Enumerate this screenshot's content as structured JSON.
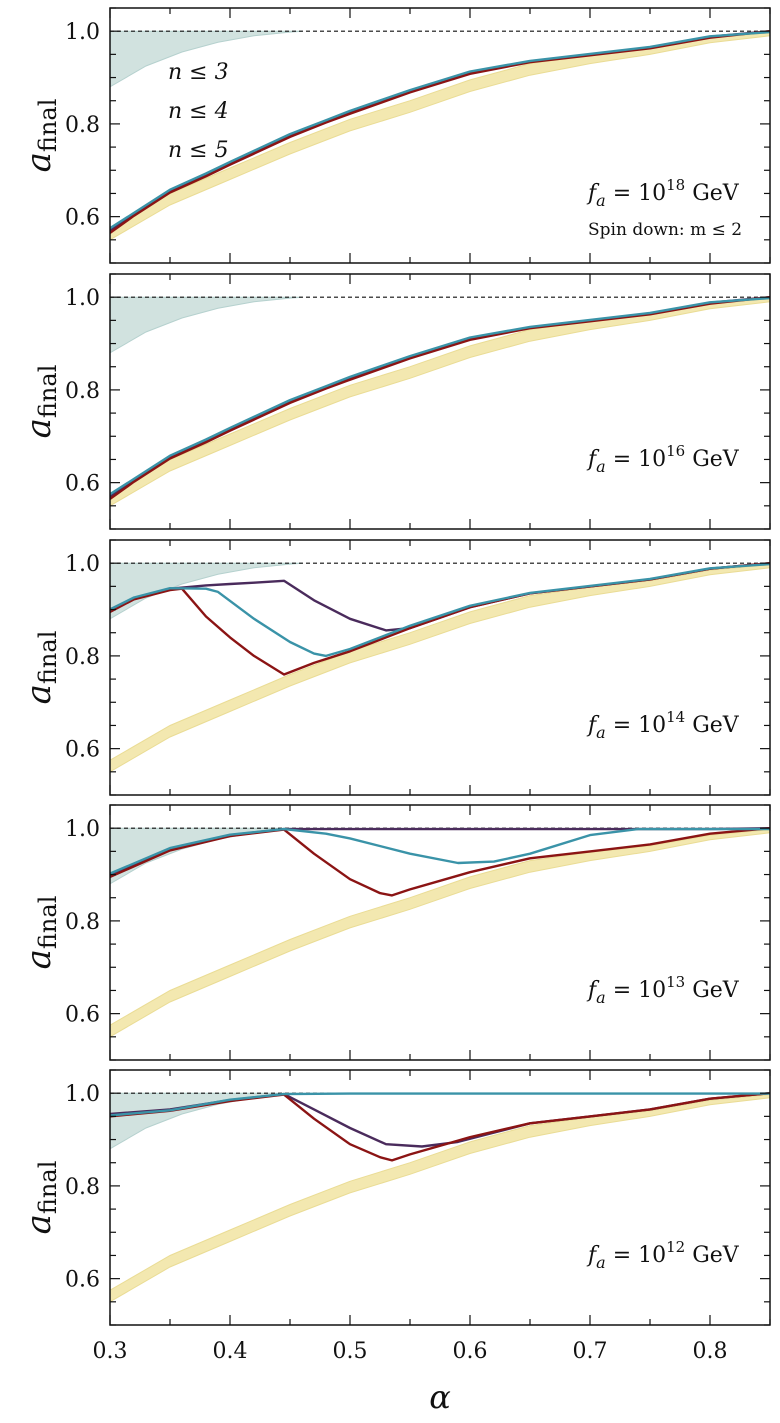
{
  "chart_data": {
    "type": "line",
    "x_range": [
      0.3,
      0.85
    ],
    "y_range": [
      0.5,
      1.05
    ],
    "x_ticks": [
      "0.3",
      "0.4",
      "0.5",
      "0.6",
      "0.7",
      "0.8"
    ],
    "y_ticks": [
      "0.6",
      "0.8",
      "1.0"
    ],
    "xlabel": "α",
    "ylabel_main": "a",
    "ylabel_sub": "final",
    "legend": [
      {
        "name": "n ≤ 3",
        "color": "#4a2b5c"
      },
      {
        "name": "n ≤ 4",
        "color": "#8b1414"
      },
      {
        "name": "n ≤ 5",
        "color": "#3a93a8"
      }
    ],
    "colors": {
      "n3": "#4a2b5c",
      "n4": "#8b1414",
      "n5": "#3a93a8",
      "band": "#f2e6a8",
      "shade": "#c9ddda"
    },
    "reference_line": 1.0,
    "band": {
      "x": [
        0.3,
        0.35,
        0.4,
        0.45,
        0.5,
        0.55,
        0.6,
        0.65,
        0.7,
        0.75,
        0.8,
        0.85
      ],
      "lower": [
        0.55,
        0.625,
        0.68,
        0.735,
        0.785,
        0.825,
        0.87,
        0.905,
        0.93,
        0.95,
        0.975,
        0.99
      ],
      "upper": [
        0.575,
        0.65,
        0.705,
        0.76,
        0.81,
        0.85,
        0.895,
        0.93,
        0.948,
        0.962,
        0.985,
        0.997
      ]
    },
    "shaded_region": {
      "x": [
        0.3,
        0.33,
        0.36,
        0.39,
        0.42,
        0.45,
        0.46
      ],
      "lower": [
        0.88,
        0.925,
        0.955,
        0.976,
        0.99,
        0.998,
        1.0
      ],
      "upper": 1.0
    },
    "panels": [
      {
        "label_prefix": "f",
        "label_sub": "a",
        "label_eq": " = 10",
        "label_exp": "18",
        "label_unit": " GeV",
        "extra_note": "Spin down: m ≤ 2",
        "series": [
          {
            "name": "n ≤ 3",
            "x": [
              0.3,
              0.32,
              0.35,
              0.38,
              0.4,
              0.45,
              0.48,
              0.5,
              0.55,
              0.6,
              0.65,
              0.7,
              0.75,
              0.8,
              0.85
            ],
            "y": [
              0.57,
              0.605,
              0.655,
              0.69,
              0.715,
              0.775,
              0.805,
              0.825,
              0.87,
              0.91,
              0.935,
              0.95,
              0.965,
              0.988,
              1.0
            ]
          },
          {
            "name": "n ≤ 4",
            "x": [
              0.3,
              0.32,
              0.35,
              0.38,
              0.4,
              0.45,
              0.48,
              0.5,
              0.55,
              0.6,
              0.65,
              0.7,
              0.75,
              0.8,
              0.85
            ],
            "y": [
              0.565,
              0.602,
              0.652,
              0.687,
              0.712,
              0.772,
              0.803,
              0.822,
              0.868,
              0.908,
              0.933,
              0.948,
              0.963,
              0.986,
              1.0
            ]
          },
          {
            "name": "n ≤ 5",
            "x": [
              0.3,
              0.32,
              0.35,
              0.38,
              0.4,
              0.45,
              0.48,
              0.5,
              0.55,
              0.6,
              0.65,
              0.7,
              0.75,
              0.8,
              0.85
            ],
            "y": [
              0.575,
              0.608,
              0.658,
              0.693,
              0.718,
              0.778,
              0.808,
              0.828,
              0.873,
              0.913,
              0.936,
              0.951,
              0.966,
              0.989,
              0.998
            ]
          }
        ]
      },
      {
        "label_prefix": "f",
        "label_sub": "a",
        "label_eq": " = 10",
        "label_exp": "16",
        "label_unit": " GeV",
        "extra_note": "",
        "series": [
          {
            "name": "n ≤ 3",
            "x": [
              0.3,
              0.32,
              0.35,
              0.38,
              0.4,
              0.45,
              0.48,
              0.5,
              0.55,
              0.6,
              0.65,
              0.7,
              0.75,
              0.8,
              0.85
            ],
            "y": [
              0.57,
              0.605,
              0.655,
              0.69,
              0.715,
              0.775,
              0.805,
              0.825,
              0.87,
              0.91,
              0.935,
              0.95,
              0.965,
              0.988,
              1.0
            ]
          },
          {
            "name": "n ≤ 4",
            "x": [
              0.3,
              0.32,
              0.35,
              0.38,
              0.4,
              0.45,
              0.48,
              0.5,
              0.55,
              0.6,
              0.65,
              0.7,
              0.75,
              0.8,
              0.85
            ],
            "y": [
              0.565,
              0.602,
              0.652,
              0.687,
              0.712,
              0.772,
              0.803,
              0.822,
              0.868,
              0.908,
              0.933,
              0.948,
              0.963,
              0.986,
              1.0
            ]
          },
          {
            "name": "n ≤ 5",
            "x": [
              0.3,
              0.32,
              0.35,
              0.38,
              0.4,
              0.45,
              0.48,
              0.5,
              0.55,
              0.6,
              0.65,
              0.7,
              0.75,
              0.8,
              0.85
            ],
            "y": [
              0.575,
              0.608,
              0.658,
              0.693,
              0.718,
              0.778,
              0.808,
              0.828,
              0.873,
              0.913,
              0.936,
              0.951,
              0.966,
              0.989,
              0.998
            ]
          }
        ]
      },
      {
        "label_prefix": "f",
        "label_sub": "a",
        "label_eq": " = 10",
        "label_exp": "14",
        "label_unit": " GeV",
        "extra_note": "",
        "series": [
          {
            "name": "n ≤ 3",
            "x": [
              0.3,
              0.32,
              0.35,
              0.38,
              0.4,
              0.42,
              0.445,
              0.47,
              0.5,
              0.53,
              0.55,
              0.6,
              0.65,
              0.7,
              0.75,
              0.8,
              0.85
            ],
            "y": [
              0.9,
              0.925,
              0.945,
              0.952,
              0.955,
              0.958,
              0.962,
              0.92,
              0.88,
              0.855,
              0.86,
              0.905,
              0.935,
              0.95,
              0.965,
              0.988,
              1.0
            ]
          },
          {
            "name": "n ≤ 4",
            "x": [
              0.3,
              0.32,
              0.35,
              0.36,
              0.38,
              0.4,
              0.42,
              0.445,
              0.47,
              0.5,
              0.55,
              0.6,
              0.65,
              0.7,
              0.75,
              0.8,
              0.85
            ],
            "y": [
              0.895,
              0.922,
              0.942,
              0.945,
              0.885,
              0.84,
              0.8,
              0.76,
              0.785,
              0.81,
              0.86,
              0.905,
              0.935,
              0.95,
              0.965,
              0.988,
              1.0
            ]
          },
          {
            "name": "n ≤ 5",
            "x": [
              0.3,
              0.32,
              0.35,
              0.38,
              0.39,
              0.42,
              0.45,
              0.47,
              0.48,
              0.5,
              0.55,
              0.6,
              0.65,
              0.7,
              0.75,
              0.8,
              0.85
            ],
            "y": [
              0.9,
              0.926,
              0.946,
              0.945,
              0.938,
              0.88,
              0.83,
              0.805,
              0.8,
              0.815,
              0.865,
              0.908,
              0.936,
              0.951,
              0.966,
              0.989,
              0.998
            ]
          }
        ]
      },
      {
        "label_prefix": "f",
        "label_sub": "a",
        "label_eq": " = 10",
        "label_exp": "13",
        "label_unit": " GeV",
        "extra_note": "",
        "series": [
          {
            "name": "n ≤ 3",
            "x": [
              0.3,
              0.35,
              0.4,
              0.445,
              0.5,
              0.55,
              0.6,
              0.65,
              0.7,
              0.75,
              0.8,
              0.85
            ],
            "y": [
              0.9,
              0.955,
              0.985,
              0.998,
              0.998,
              0.998,
              0.998,
              0.998,
              0.998,
              0.998,
              0.998,
              1.0
            ]
          },
          {
            "name": "n ≤ 4",
            "x": [
              0.3,
              0.35,
              0.4,
              0.445,
              0.47,
              0.5,
              0.525,
              0.535,
              0.55,
              0.6,
              0.65,
              0.7,
              0.75,
              0.8,
              0.85
            ],
            "y": [
              0.895,
              0.952,
              0.983,
              0.997,
              0.945,
              0.89,
              0.86,
              0.855,
              0.868,
              0.905,
              0.935,
              0.95,
              0.965,
              0.988,
              1.0
            ]
          },
          {
            "name": "n ≤ 5",
            "x": [
              0.3,
              0.35,
              0.4,
              0.445,
              0.48,
              0.5,
              0.55,
              0.59,
              0.62,
              0.65,
              0.7,
              0.74,
              0.8,
              0.85
            ],
            "y": [
              0.902,
              0.957,
              0.986,
              0.998,
              0.988,
              0.978,
              0.945,
              0.925,
              0.928,
              0.945,
              0.985,
              0.998,
              0.998,
              0.998
            ]
          }
        ]
      },
      {
        "label_prefix": "f",
        "label_sub": "a",
        "label_eq": " = 10",
        "label_exp": "12",
        "label_unit": " GeV",
        "extra_note": "",
        "series": [
          {
            "name": "n ≤ 3",
            "x": [
              0.3,
              0.35,
              0.4,
              0.445,
              0.47,
              0.5,
              0.53,
              0.56,
              0.59,
              0.62,
              0.65,
              0.7,
              0.75,
              0.8,
              0.85
            ],
            "y": [
              0.955,
              0.965,
              0.985,
              0.998,
              0.965,
              0.925,
              0.89,
              0.885,
              0.895,
              0.915,
              0.935,
              0.95,
              0.965,
              0.988,
              1.0
            ]
          },
          {
            "name": "n ≤ 4",
            "x": [
              0.3,
              0.35,
              0.4,
              0.445,
              0.47,
              0.5,
              0.525,
              0.535,
              0.55,
              0.6,
              0.65,
              0.7,
              0.75,
              0.8,
              0.85
            ],
            "y": [
              0.95,
              0.962,
              0.983,
              0.997,
              0.945,
              0.89,
              0.862,
              0.855,
              0.868,
              0.905,
              0.935,
              0.95,
              0.965,
              0.988,
              1.0
            ]
          },
          {
            "name": "n ≤ 5",
            "x": [
              0.3,
              0.35,
              0.4,
              0.445,
              0.5,
              0.6,
              0.7,
              0.8,
              0.85
            ],
            "y": [
              0.952,
              0.963,
              0.986,
              0.998,
              0.999,
              0.999,
              0.999,
              0.999,
              0.999
            ]
          }
        ]
      }
    ]
  }
}
